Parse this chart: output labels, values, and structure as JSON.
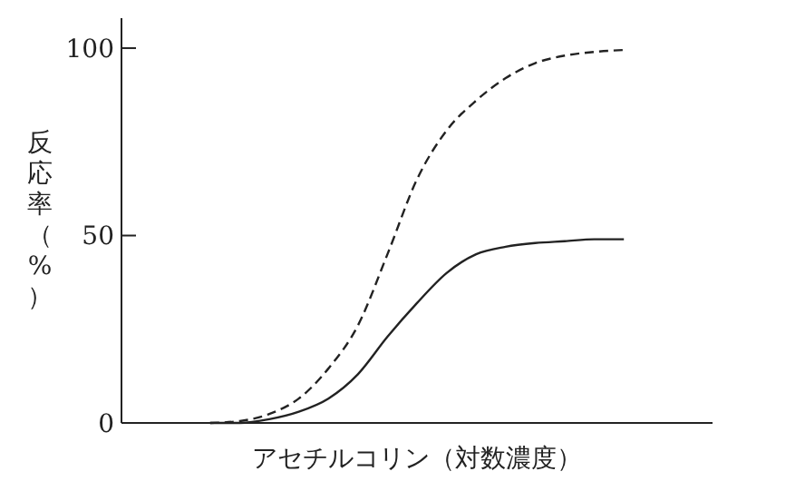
{
  "chart_data": {
    "type": "line",
    "xlabel": "アセチルコリン（対数濃度）",
    "ylabel": "反応率（%）",
    "categories": [
      null,
      null,
      null,
      null,
      null,
      null,
      null,
      null,
      null,
      null,
      null,
      null,
      null,
      null,
      null,
      null,
      null,
      null,
      null,
      null,
      null
    ],
    "series": [
      {
        "color": "#222222",
        "line_style": "dashed",
        "values": [
          null,
          null,
          null,
          0,
          0.5,
          2.4,
          6.5,
          14.5,
          26,
          45,
          65,
          78,
          86,
          92,
          96,
          98,
          99,
          99.5,
          null,
          null,
          null
        ]
      },
      {
        "color": "#222222",
        "line_style": "solid",
        "values": [
          null,
          null,
          null,
          0,
          0,
          1,
          3,
          6.5,
          13,
          23,
          32,
          40,
          45,
          47,
          48,
          48.5,
          49,
          49,
          null,
          null,
          null
        ]
      }
    ],
    "ylim": [
      0,
      108
    ],
    "yticks": [
      0,
      50,
      100
    ],
    "grid": false,
    "marker": "none"
  }
}
